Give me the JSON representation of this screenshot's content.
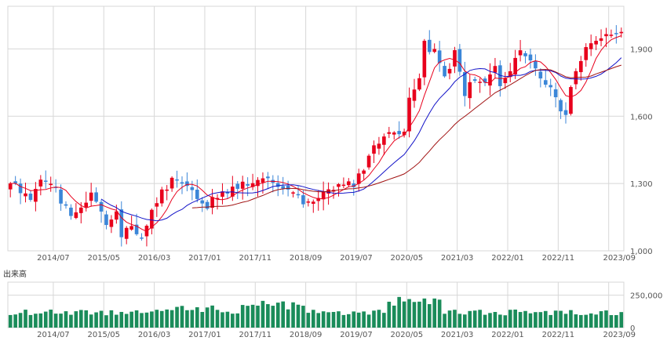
{
  "volume_label": "出来高",
  "colors": {
    "up": "#e8001c",
    "down": "#3b86d8",
    "ma_short": "#e8001c",
    "ma_mid": "#1414c8",
    "ma_long": "#a01010",
    "volume": "#1a8c5a",
    "grid": "#d7d7d7",
    "axis_text": "#555555"
  },
  "chart_data": [
    {
      "type": "candlestick",
      "title": "",
      "interval": "monthly",
      "ylim": [
        1000,
        2090
      ],
      "y_ticks": [
        1000,
        1300,
        1600,
        1900
      ],
      "y_tick_labels": [
        "1,000",
        "1,300",
        "1,600",
        "1,900"
      ],
      "x_tick_labels": [
        "2014/07",
        "2015/05",
        "2016/03",
        "2017/01",
        "2017/11",
        "2018/09",
        "2019/07",
        "2020/05",
        "2021/03",
        "2022/01",
        "2022/11",
        "2023/09"
      ],
      "x_tick_index": [
        9,
        19,
        29,
        39,
        49,
        59,
        69,
        79,
        89,
        99,
        109,
        119
      ],
      "grid": true,
      "series": [
        {
          "name": "short_ma",
          "color_key": "ma_short"
        },
        {
          "name": "mid_ma",
          "color_key": "ma_mid"
        },
        {
          "name": "long_ma",
          "color_key": "ma_long"
        }
      ],
      "anchors": [
        [
          0,
          1305
        ],
        [
          4,
          1235
        ],
        [
          6,
          1330
        ],
        [
          9,
          1260
        ],
        [
          12,
          1145
        ],
        [
          14,
          1190
        ],
        [
          16,
          1245
        ],
        [
          19,
          1130
        ],
        [
          21,
          1160
        ],
        [
          22,
          1080
        ],
        [
          24,
          1095
        ],
        [
          26,
          1070
        ],
        [
          27,
          1100
        ],
        [
          28,
          1200
        ],
        [
          30,
          1255
        ],
        [
          32,
          1320
        ],
        [
          34,
          1300
        ],
        [
          36,
          1260
        ],
        [
          38,
          1220
        ],
        [
          39,
          1175
        ],
        [
          40,
          1230
        ],
        [
          42,
          1260
        ],
        [
          44,
          1285
        ],
        [
          46,
          1300
        ],
        [
          48,
          1290
        ],
        [
          50,
          1310
        ],
        [
          52,
          1320
        ],
        [
          54,
          1290
        ],
        [
          56,
          1270
        ],
        [
          58,
          1210
        ],
        [
          60,
          1200
        ],
        [
          62,
          1260
        ],
        [
          64,
          1290
        ],
        [
          66,
          1280
        ],
        [
          68,
          1300
        ],
        [
          70,
          1370
        ],
        [
          72,
          1470
        ],
        [
          74,
          1510
        ],
        [
          76,
          1520
        ],
        [
          78,
          1550
        ],
        [
          79,
          1680
        ],
        [
          81,
          1760
        ],
        [
          82,
          1920
        ],
        [
          84,
          1880
        ],
        [
          86,
          1760
        ],
        [
          88,
          1900
        ],
        [
          90,
          1700
        ],
        [
          92,
          1770
        ],
        [
          94,
          1760
        ],
        [
          96,
          1830
        ],
        [
          97,
          1740
        ],
        [
          99,
          1800
        ],
        [
          101,
          1900
        ],
        [
          103,
          1860
        ],
        [
          105,
          1780
        ],
        [
          107,
          1720
        ],
        [
          109,
          1640
        ],
        [
          110,
          1620
        ],
        [
          112,
          1800
        ],
        [
          114,
          1910
        ],
        [
          116,
          1930
        ],
        [
          118,
          1960
        ],
        [
          119,
          1980
        ],
        [
          120,
          1950
        ],
        [
          121,
          1960
        ]
      ],
      "volume": {
        "ylim": [
          0,
          350000
        ],
        "y_ticks": [
          0,
          250000
        ],
        "y_tick_labels": [
          "0",
          "250,000"
        ]
      }
    }
  ]
}
